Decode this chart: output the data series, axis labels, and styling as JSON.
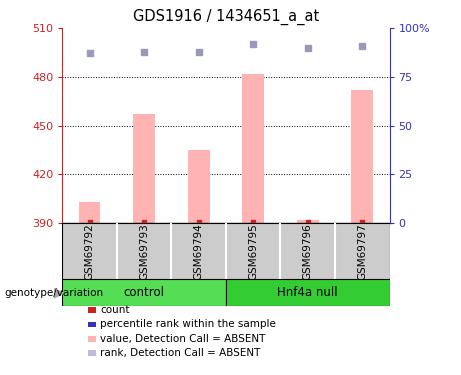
{
  "title": "GDS1916 / 1434651_a_at",
  "samples": [
    "GSM69792",
    "GSM69793",
    "GSM69794",
    "GSM69795",
    "GSM69796",
    "GSM69797"
  ],
  "bar_values": [
    403,
    457,
    435,
    482,
    392,
    472
  ],
  "rank_values": [
    87,
    88,
    88,
    92,
    90,
    91
  ],
  "ymin": 390,
  "ymax": 510,
  "yticks_left": [
    390,
    420,
    450,
    480,
    510
  ],
  "yticks_right": [
    0,
    25,
    50,
    75,
    100
  ],
  "yright_labels": [
    "0",
    "25",
    "50",
    "75",
    "100%"
  ],
  "grid_lines": [
    420,
    450,
    480
  ],
  "bar_color": "#ffb3b3",
  "rank_dot_color": "#9999bb",
  "count_dot_color": "#cc2222",
  "control_color": "#55dd55",
  "hnf4a_color": "#33cc33",
  "left_axis_color": "#cc2222",
  "right_axis_color": "#3333bb",
  "sample_bg_color": "#cccccc",
  "legend_items": [
    {
      "label": "count",
      "color": "#cc2222"
    },
    {
      "label": "percentile rank within the sample",
      "color": "#3333bb"
    },
    {
      "label": "value, Detection Call = ABSENT",
      "color": "#ffb3b3"
    },
    {
      "label": "rank, Detection Call = ABSENT",
      "color": "#bbbbdd"
    }
  ]
}
